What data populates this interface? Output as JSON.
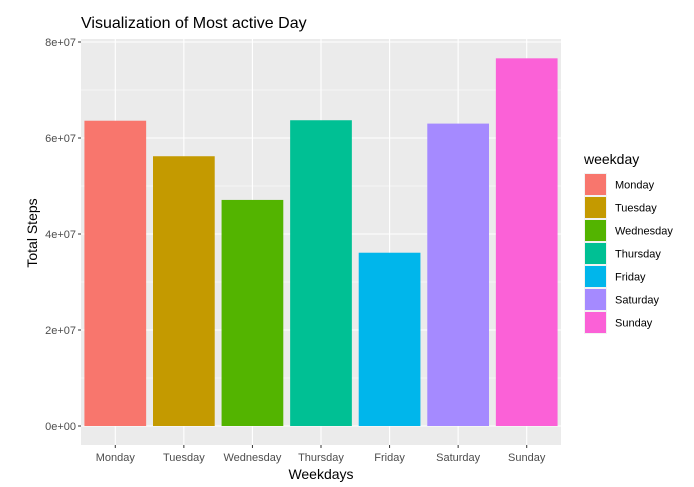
{
  "chart_data": {
    "type": "bar",
    "title": "Visualization of Most active Day",
    "xlabel": "Weekdays",
    "ylabel": "Total Steps",
    "categories": [
      "Monday",
      "Tuesday",
      "Wednesday",
      "Thursday",
      "Friday",
      "Saturday",
      "Sunday"
    ],
    "values": [
      63600000,
      56200000,
      47100000,
      63700000,
      36100000,
      63000000,
      76600000
    ],
    "ylim": [
      0,
      80000000
    ],
    "yticks": [
      0,
      20000000,
      40000000,
      60000000,
      80000000
    ],
    "ytick_labels": [
      "0e+00",
      "2e+07",
      "4e+07",
      "6e+07",
      "8e+07"
    ],
    "colors": [
      "#F8766D",
      "#C49A00",
      "#53B400",
      "#00C094",
      "#00B6EB",
      "#A58AFF",
      "#FB61D7"
    ],
    "legend": {
      "title": "weekday",
      "placement": "right",
      "entries": [
        "Monday",
        "Tuesday",
        "Wednesday",
        "Thursday",
        "Friday",
        "Saturday",
        "Sunday"
      ]
    },
    "grid": true,
    "panel_background": "#EBEBEB"
  }
}
